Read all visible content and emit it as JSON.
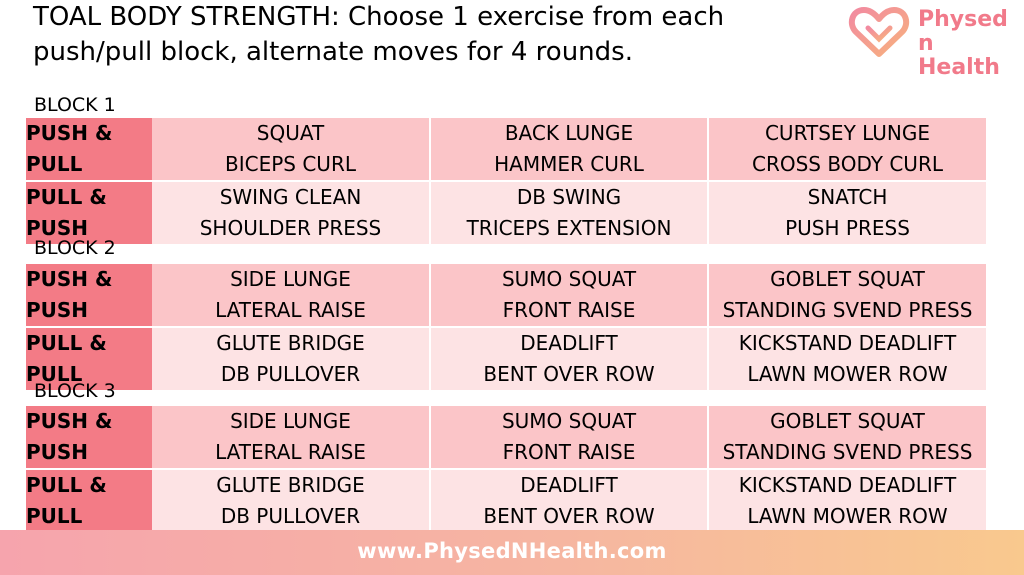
{
  "title": "TOAL BODY STRENGTH: Choose 1 exercise from each push/pull block, alternate moves for 4 rounds.",
  "logo": {
    "line1": "Physed",
    "line2": "n Health",
    "icon": "heart-logo-icon"
  },
  "blocks": [
    {
      "label": "BLOCK 1",
      "rows": [
        {
          "head": [
            "PUSH &",
            "PULL"
          ],
          "cells": [
            [
              "SQUAT",
              "BICEPS CURL"
            ],
            [
              "BACK LUNGE",
              "HAMMER CURL"
            ],
            [
              "CURTSEY LUNGE",
              "CROSS BODY CURL"
            ]
          ]
        },
        {
          "head": [
            "PULL &",
            "PUSH"
          ],
          "cells": [
            [
              "SWING CLEAN",
              "SHOULDER PRESS"
            ],
            [
              "DB SWING",
              "TRICEPS EXTENSION"
            ],
            [
              "SNATCH",
              "PUSH PRESS"
            ]
          ]
        }
      ]
    },
    {
      "label": "BLOCK 2",
      "rows": [
        {
          "head": [
            "PUSH &",
            "PUSH"
          ],
          "cells": [
            [
              "SIDE LUNGE",
              "LATERAL RAISE"
            ],
            [
              "SUMO SQUAT",
              "FRONT RAISE"
            ],
            [
              "GOBLET SQUAT",
              "STANDING SVEND PRESS"
            ]
          ]
        },
        {
          "head": [
            "PULL &",
            "PULL"
          ],
          "cells": [
            [
              "GLUTE BRIDGE",
              "DB PULLOVER"
            ],
            [
              "DEADLIFT",
              "BENT OVER ROW"
            ],
            [
              "KICKSTAND DEADLIFT",
              "LAWN MOWER ROW"
            ]
          ]
        }
      ]
    },
    {
      "label": "BLOCK 3",
      "rows": [
        {
          "head": [
            "PUSH &",
            "PUSH"
          ],
          "cells": [
            [
              "SIDE LUNGE",
              "LATERAL RAISE"
            ],
            [
              "SUMO SQUAT",
              "FRONT RAISE"
            ],
            [
              "GOBLET SQUAT",
              "STANDING SVEND PRESS"
            ]
          ]
        },
        {
          "head": [
            "PULL &",
            "PULL"
          ],
          "cells": [
            [
              "GLUTE BRIDGE",
              "DB PULLOVER"
            ],
            [
              "DEADLIFT",
              "BENT OVER ROW"
            ],
            [
              "KICKSTAND DEADLIFT",
              "LAWN MOWER ROW"
            ]
          ]
        }
      ]
    }
  ],
  "footer": {
    "url": "www.PhysedNHealth.com"
  },
  "colors": {
    "header_cell": "#f37b86",
    "row1": "#fbc5c8",
    "row2": "#fde3e4",
    "logo": "#f17a8a"
  }
}
